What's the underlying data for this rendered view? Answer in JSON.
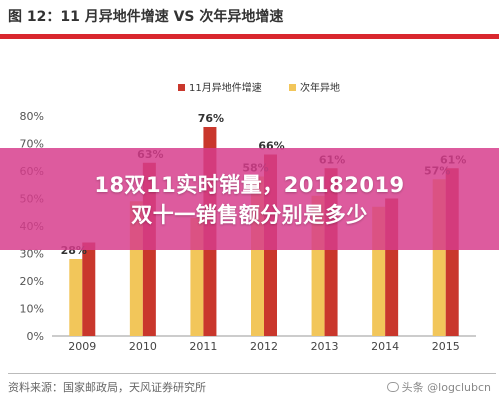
{
  "header": {
    "title": "图 12：11 月异地件增速 VS 次年异地增速"
  },
  "overlay": {
    "line1": "18双11实时销量，20182019",
    "line2": "双十一销售额分别是多少"
  },
  "footer": {
    "source": "资料来源：国家邮政局，天风证券研究所",
    "watermark": "头条 @logclubcn"
  },
  "colors": {
    "series1": "#c9372c",
    "series2": "#f2c65a",
    "title_rule": "#d9272e",
    "overlay": "#d63c8c"
  },
  "chart_data": {
    "type": "bar",
    "categories": [
      "2009",
      "2010",
      "2011",
      "2012",
      "2013",
      "2014",
      "2015"
    ],
    "series": [
      {
        "name": "11月异地件增速",
        "values": [
          34,
          63,
          76,
          66,
          61,
          50,
          61
        ]
      },
      {
        "name": "次年异地",
        "values": [
          28,
          49,
          43,
          58,
          51,
          47,
          57
        ]
      }
    ],
    "data_labels": [
      "28%",
      "63%",
      "76%",
      "66%",
      "58%",
      "61%",
      "57%",
      "61%"
    ],
    "yticks": [
      "0%",
      "10%",
      "20%",
      "30%",
      "40%",
      "50%",
      "60%",
      "70%",
      "80%"
    ],
    "ylim": [
      0,
      80
    ],
    "legend_position": "top-center",
    "grid": false
  }
}
